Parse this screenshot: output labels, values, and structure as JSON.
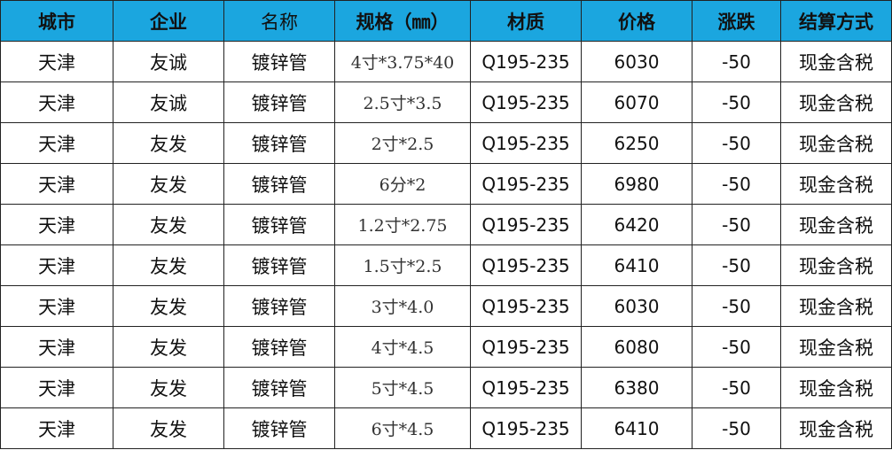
{
  "header": {
    "bg_color": "#1ba6df",
    "columns": [
      "城市",
      "企业",
      "名称",
      "规格（㎜）",
      "材质",
      "价格",
      "涨跌",
      "结算方式"
    ]
  },
  "rows": [
    [
      "天津",
      "友诚",
      "镀锌管",
      "4寸*3.75*40",
      "Q195-235",
      "6030",
      "-50",
      "现金含税"
    ],
    [
      "天津",
      "友诚",
      "镀锌管",
      "2.5寸*3.5",
      "Q195-235",
      "6070",
      "-50",
      "现金含税"
    ],
    [
      "天津",
      "友发",
      "镀锌管",
      "2寸*2.5",
      "Q195-235",
      "6250",
      "-50",
      "现金含税"
    ],
    [
      "天津",
      "友发",
      "镀锌管",
      "6分*2",
      "Q195-235",
      "6980",
      "-50",
      "现金含税"
    ],
    [
      "天津",
      "友发",
      "镀锌管",
      "1.2寸*2.75",
      "Q195-235",
      "6420",
      "-50",
      "现金含税"
    ],
    [
      "天津",
      "友发",
      "镀锌管",
      "1.5寸*2.5",
      "Q195-235",
      "6410",
      "-50",
      "现金含税"
    ],
    [
      "天津",
      "友发",
      "镀锌管",
      "3寸*4.0",
      "Q195-235",
      "6030",
      "-50",
      "现金含税"
    ],
    [
      "天津",
      "友发",
      "镀锌管",
      "4寸*4.5",
      "Q195-235",
      "6080",
      "-50",
      "现金含税"
    ],
    [
      "天津",
      "友发",
      "镀锌管",
      "5寸*4.5",
      "Q195-235",
      "6380",
      "-50",
      "现金含税"
    ],
    [
      "天津",
      "友发",
      "镀锌管",
      "6寸*4.5",
      "Q195-235",
      "6410",
      "-50",
      "现金含税"
    ]
  ]
}
